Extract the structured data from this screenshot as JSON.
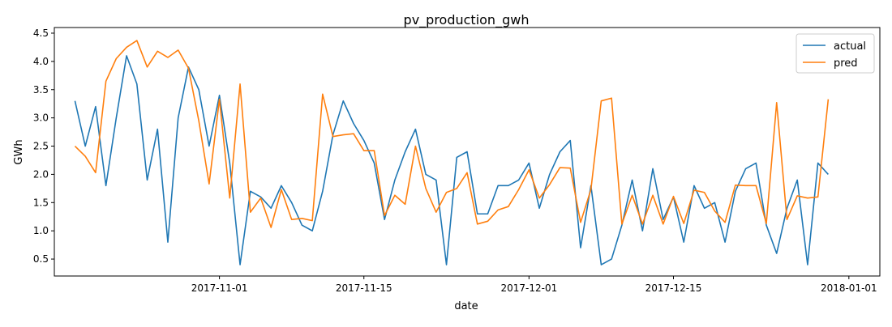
{
  "chart_data": {
    "type": "line",
    "title": "pv_production_gwh",
    "xlabel": "date",
    "ylabel": "GWh",
    "x_start_date": "2017-10-18",
    "x_step_days": 1,
    "xlim": [
      "2017-10-16",
      "2018-01-04"
    ],
    "ylim": [
      0.2,
      4.6
    ],
    "x_ticks": [
      {
        "date": "2017-11-01",
        "label": "2017-11-01"
      },
      {
        "date": "2017-11-15",
        "label": "2017-11-15"
      },
      {
        "date": "2017-12-01",
        "label": "2017-12-01"
      },
      {
        "date": "2017-12-15",
        "label": "2017-12-15"
      },
      {
        "date": "2018-01-01",
        "label": "2018-01-01"
      }
    ],
    "y_ticks": [
      {
        "value": 0.5,
        "label": "0.5"
      },
      {
        "value": 1.0,
        "label": "1.0"
      },
      {
        "value": 1.5,
        "label": "1.5"
      },
      {
        "value": 2.0,
        "label": "2.0"
      },
      {
        "value": 2.5,
        "label": "2.5"
      },
      {
        "value": 3.0,
        "label": "3.0"
      },
      {
        "value": 3.5,
        "label": "3.5"
      },
      {
        "value": 4.0,
        "label": "4.0"
      },
      {
        "value": 4.5,
        "label": "4.5"
      }
    ],
    "grid": false,
    "legend": "top-right",
    "series": [
      {
        "name": "actual",
        "color": "#1f77b4",
        "values": [
          3.3,
          2.5,
          3.2,
          1.8,
          3.0,
          4.1,
          3.6,
          1.9,
          2.8,
          0.8,
          3.0,
          3.9,
          3.5,
          2.5,
          3.4,
          2.2,
          0.4,
          1.7,
          1.6,
          1.4,
          1.8,
          1.5,
          1.1,
          1.0,
          1.7,
          2.7,
          3.3,
          2.9,
          2.6,
          2.2,
          1.2,
          1.9,
          2.4,
          2.8,
          2.0,
          1.9,
          0.4,
          2.3,
          2.4,
          1.3,
          1.3,
          1.8,
          1.8,
          1.9,
          2.2,
          1.4,
          2.0,
          2.4,
          2.6,
          0.7,
          1.8,
          0.4,
          0.5,
          1.1,
          1.9,
          1.0,
          2.1,
          1.2,
          1.6,
          0.8,
          1.8,
          1.4,
          1.5,
          0.8,
          1.7,
          2.1,
          2.2,
          1.1,
          0.6,
          1.4,
          1.9,
          0.4,
          2.2,
          2.0
        ]
      },
      {
        "name": "pred",
        "color": "#ff7f0e",
        "values": [
          2.5,
          2.32,
          2.03,
          3.65,
          4.05,
          4.25,
          4.37,
          3.9,
          4.18,
          4.07,
          4.2,
          3.88,
          2.95,
          1.83,
          3.33,
          1.58,
          3.6,
          1.33,
          1.58,
          1.06,
          1.73,
          1.2,
          1.22,
          1.18,
          3.42,
          2.67,
          2.7,
          2.72,
          2.42,
          2.42,
          1.27,
          1.63,
          1.47,
          2.5,
          1.75,
          1.33,
          1.68,
          1.75,
          2.03,
          1.12,
          1.17,
          1.37,
          1.43,
          1.73,
          2.08,
          1.58,
          1.82,
          2.12,
          2.11,
          1.15,
          1.73,
          3.3,
          3.35,
          1.12,
          1.63,
          1.12,
          1.63,
          1.12,
          1.61,
          1.13,
          1.72,
          1.68,
          1.35,
          1.15,
          1.81,
          1.8,
          1.8,
          1.13,
          3.27,
          1.2,
          1.62,
          1.58,
          1.6,
          3.33
        ]
      }
    ]
  }
}
